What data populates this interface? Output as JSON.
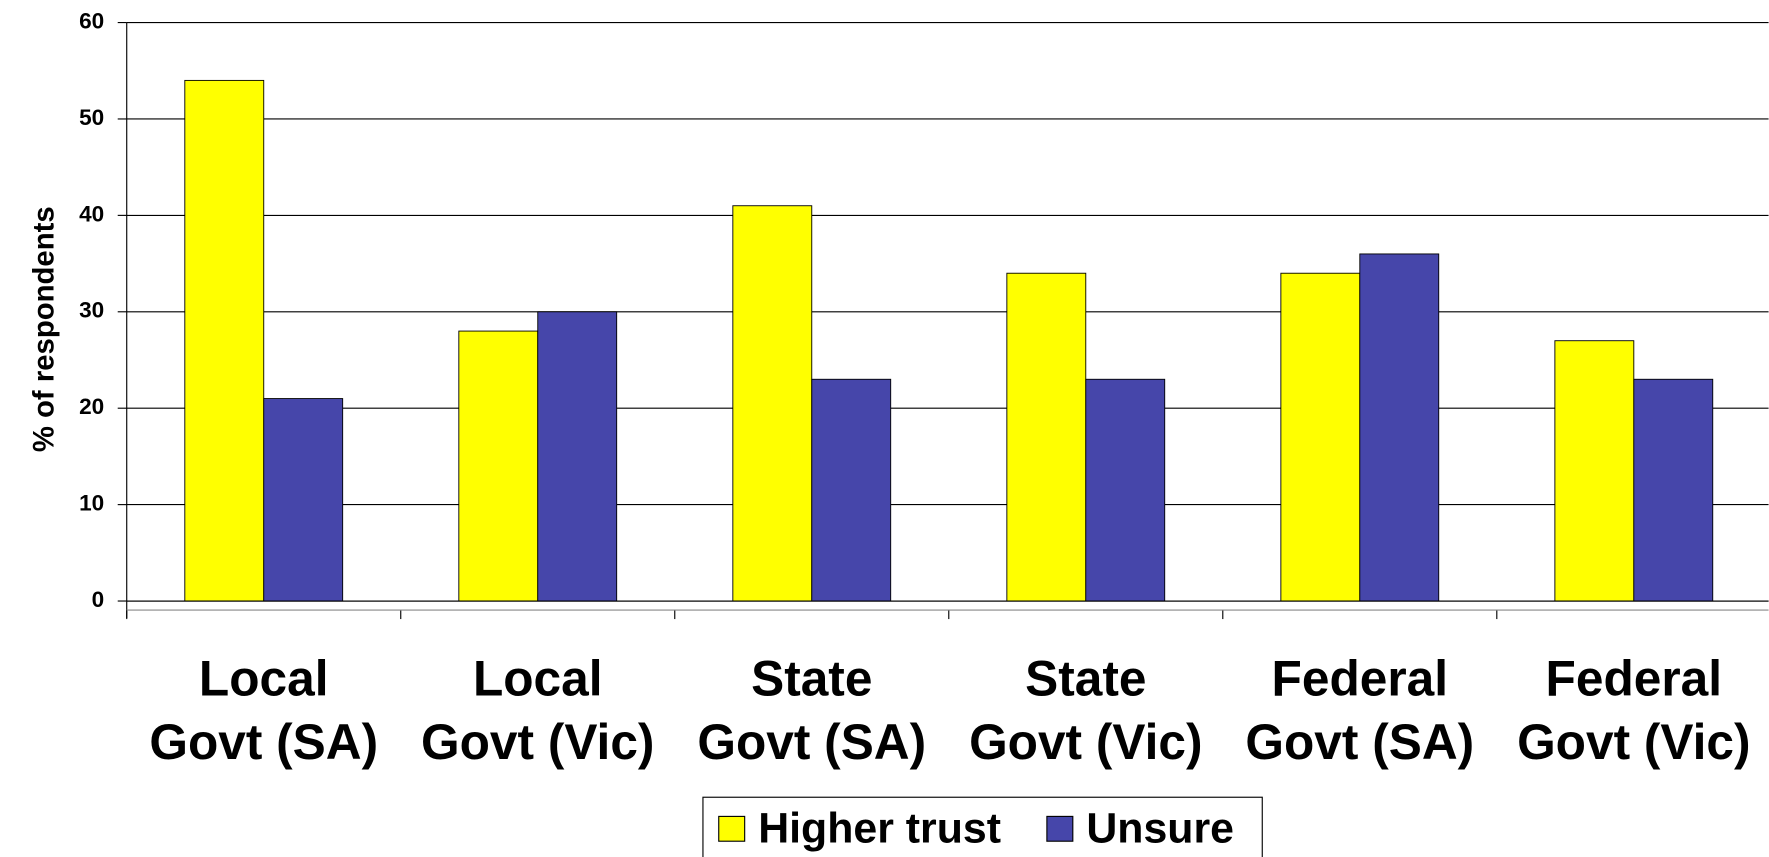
{
  "chart_data": {
    "type": "bar",
    "y_axis_label": "% of respondents",
    "categories": [
      "Local Govt (SA)",
      "Local Govt (Vic)",
      "State Govt (SA)",
      "State Govt (Vic)",
      "Federal Govt (SA)",
      "Federal Govt (Vic)"
    ],
    "series": [
      {
        "name": "Higher trust",
        "color": "#ffff00",
        "values": [
          54,
          28,
          41,
          34,
          34,
          27
        ]
      },
      {
        "name": "Unsure",
        "color": "#4646aa",
        "values": [
          21,
          30,
          23,
          23,
          36,
          23
        ]
      }
    ],
    "ylim": [
      0,
      60
    ],
    "yticks": [
      0,
      10,
      20,
      30,
      40,
      50,
      60
    ],
    "grid": true,
    "legend": "bottom"
  }
}
